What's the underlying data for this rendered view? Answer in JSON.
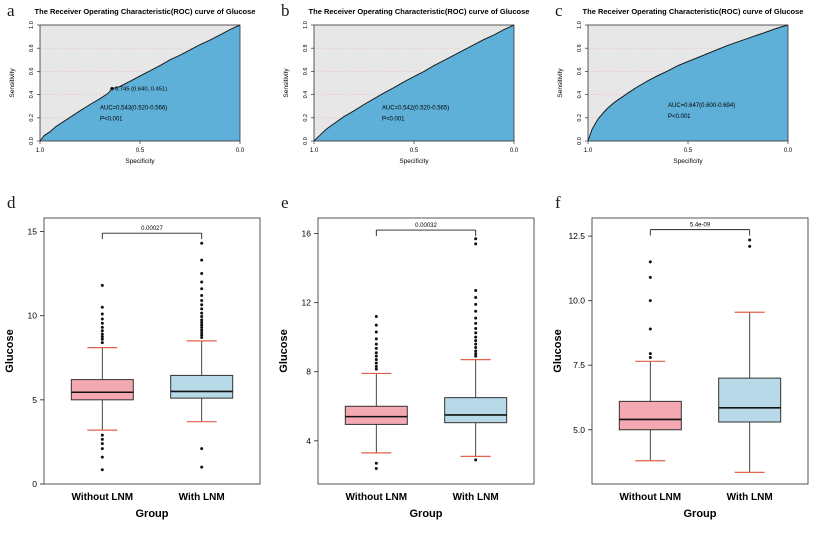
{
  "colors": {
    "roc_fill": "#5fb0d8",
    "roc_bg": "#e7e7e7",
    "grid_red": "#f0b4b4",
    "diag": "#94b594",
    "curve": "#1c1c1c",
    "whisker_cap": "#e0604c",
    "box_border": "#333333",
    "text": "#000000"
  },
  "chart_data": [
    {
      "letter": "a",
      "kind": "roc",
      "type": "line",
      "title": "The Receiver Operating Characteristic(ROC) curve of Glucose",
      "xlabel": "Specificity",
      "ylabel": "Sensitivity",
      "x_tick_labels": [
        "1.0",
        "0.5",
        "0.0"
      ],
      "y_tick_labels": [
        "0.0",
        "0.2",
        "0.4",
        "0.6",
        "0.8",
        "1.0"
      ],
      "auc_label": "AUC=0.543(0.520-0.566)",
      "p_label": "P<0.001",
      "threshold_label": "5.745 (0.640, 0.451)",
      "marker": {
        "specificity": 0.64,
        "sensitivity": 0.451
      },
      "auc_pos": [
        0.3,
        0.27
      ],
      "p_pos": [
        0.3,
        0.175
      ],
      "curve": [
        [
          0,
          0
        ],
        [
          0.02,
          0.045
        ],
        [
          0.05,
          0.08
        ],
        [
          0.08,
          0.125
        ],
        [
          0.12,
          0.17
        ],
        [
          0.16,
          0.215
        ],
        [
          0.2,
          0.26
        ],
        [
          0.25,
          0.315
        ],
        [
          0.3,
          0.365
        ],
        [
          0.34,
          0.41
        ],
        [
          0.36,
          0.451
        ],
        [
          0.4,
          0.47
        ],
        [
          0.45,
          0.515
        ],
        [
          0.5,
          0.56
        ],
        [
          0.55,
          0.605
        ],
        [
          0.6,
          0.65
        ],
        [
          0.65,
          0.7
        ],
        [
          0.7,
          0.74
        ],
        [
          0.75,
          0.785
        ],
        [
          0.8,
          0.83
        ],
        [
          0.85,
          0.87
        ],
        [
          0.9,
          0.915
        ],
        [
          0.95,
          0.96
        ],
        [
          1,
          1
        ]
      ]
    },
    {
      "letter": "b",
      "kind": "roc",
      "type": "line",
      "title": "The Receiver Operating Characteristic(ROC) curve of Glucose",
      "xlabel": "Specificity",
      "ylabel": "Sensitivity",
      "x_tick_labels": [
        "1.0",
        "0.5",
        "0.0"
      ],
      "y_tick_labels": [
        "0.0",
        "0.2",
        "0.4",
        "0.6",
        "0.8",
        "1.0"
      ],
      "auc_label": "AUC=0.542(0.520-0.565)",
      "p_label": "P<0.001",
      "auc_pos": [
        0.34,
        0.27
      ],
      "p_pos": [
        0.34,
        0.175
      ],
      "curve": [
        [
          0,
          0
        ],
        [
          0.03,
          0.05
        ],
        [
          0.06,
          0.1
        ],
        [
          0.1,
          0.15
        ],
        [
          0.15,
          0.21
        ],
        [
          0.2,
          0.26
        ],
        [
          0.25,
          0.315
        ],
        [
          0.3,
          0.365
        ],
        [
          0.35,
          0.415
        ],
        [
          0.4,
          0.46
        ],
        [
          0.45,
          0.51
        ],
        [
          0.5,
          0.555
        ],
        [
          0.55,
          0.6
        ],
        [
          0.6,
          0.65
        ],
        [
          0.65,
          0.695
        ],
        [
          0.7,
          0.74
        ],
        [
          0.75,
          0.785
        ],
        [
          0.8,
          0.83
        ],
        [
          0.85,
          0.875
        ],
        [
          0.9,
          0.915
        ],
        [
          0.95,
          0.96
        ],
        [
          1,
          1
        ]
      ]
    },
    {
      "letter": "c",
      "kind": "roc",
      "type": "line",
      "title": "The Receiver Operating Characteristic(ROC) curve of Glucose",
      "xlabel": "Specificity",
      "ylabel": "Sensitivity",
      "x_tick_labels": [
        "1.0",
        "0.5",
        "0.0"
      ],
      "y_tick_labels": [
        "0.0",
        "0.2",
        "0.4",
        "0.6",
        "0.8",
        "1.0"
      ],
      "auc_label": "AUC=0.647(0.600-0.694)",
      "p_label": "P<0.001",
      "auc_pos": [
        0.4,
        0.295
      ],
      "p_pos": [
        0.4,
        0.2
      ],
      "curve": [
        [
          0,
          0
        ],
        [
          0.02,
          0.1
        ],
        [
          0.05,
          0.19
        ],
        [
          0.08,
          0.25
        ],
        [
          0.1,
          0.285
        ],
        [
          0.13,
          0.33
        ],
        [
          0.15,
          0.355
        ],
        [
          0.18,
          0.39
        ],
        [
          0.2,
          0.415
        ],
        [
          0.25,
          0.47
        ],
        [
          0.3,
          0.52
        ],
        [
          0.35,
          0.565
        ],
        [
          0.4,
          0.605
        ],
        [
          0.45,
          0.65
        ],
        [
          0.5,
          0.685
        ],
        [
          0.55,
          0.72
        ],
        [
          0.6,
          0.755
        ],
        [
          0.65,
          0.79
        ],
        [
          0.7,
          0.825
        ],
        [
          0.75,
          0.855
        ],
        [
          0.8,
          0.885
        ],
        [
          0.85,
          0.915
        ],
        [
          0.9,
          0.945
        ],
        [
          0.95,
          0.975
        ],
        [
          1,
          1
        ]
      ]
    },
    {
      "letter": "d",
      "kind": "boxplot",
      "type": "boxplot",
      "xlabel": "Group",
      "ylabel": "Glucose",
      "ylim": [
        0,
        15.8
      ],
      "y_ticks": [
        0,
        5,
        10,
        15
      ],
      "y_tick_labels": [
        "0",
        "5",
        "10",
        "15"
      ],
      "sig": {
        "label": "0.00027",
        "y": 14.9
      },
      "groups": [
        {
          "label": "Without LNM",
          "fill": "#f3a8b2",
          "q1": 5.0,
          "median": 5.45,
          "q3": 6.2,
          "whisker_low": 3.2,
          "whisker_high": 8.1,
          "outliers": [
            8.4,
            8.6,
            8.75,
            8.9,
            9.1,
            9.3,
            9.55,
            9.8,
            10.1,
            10.5,
            11.8,
            2.9,
            2.65,
            2.4,
            2.1,
            1.6,
            0.85
          ]
        },
        {
          "label": "With LNM",
          "fill": "#b7d9e8",
          "q1": 5.1,
          "median": 5.5,
          "q3": 6.45,
          "whisker_low": 3.7,
          "whisker_high": 8.5,
          "outliers": [
            8.7,
            8.85,
            9.0,
            9.15,
            9.3,
            9.45,
            9.6,
            9.75,
            9.95,
            10.15,
            10.4,
            10.65,
            10.9,
            11.2,
            11.6,
            12.0,
            12.5,
            13.3,
            14.3,
            2.1,
            1.0
          ]
        }
      ]
    },
    {
      "letter": "e",
      "kind": "boxplot",
      "type": "boxplot",
      "xlabel": "Group",
      "ylabel": "Glucose",
      "ylim": [
        1.5,
        16.9
      ],
      "y_ticks": [
        4,
        8,
        12,
        16
      ],
      "y_tick_labels": [
        "4",
        "8",
        "12",
        "16"
      ],
      "sig": {
        "label": "0.00032",
        "y": 16.2
      },
      "groups": [
        {
          "label": "Without LNM",
          "fill": "#f3a8b2",
          "q1": 4.95,
          "median": 5.4,
          "q3": 6.0,
          "whisker_low": 3.3,
          "whisker_high": 7.9,
          "outliers": [
            8.15,
            8.3,
            8.5,
            8.7,
            8.9,
            9.1,
            9.35,
            9.6,
            9.9,
            10.3,
            10.7,
            11.2,
            2.7,
            2.4
          ]
        },
        {
          "label": "With LNM",
          "fill": "#b7d9e8",
          "q1": 5.05,
          "median": 5.5,
          "q3": 6.5,
          "whisker_low": 3.1,
          "whisker_high": 8.7,
          "outliers": [
            8.9,
            9.05,
            9.2,
            9.4,
            9.6,
            9.8,
            10.0,
            10.25,
            10.5,
            10.8,
            11.1,
            11.5,
            11.9,
            12.3,
            12.7,
            15.4,
            15.7,
            2.9
          ]
        }
      ]
    },
    {
      "letter": "f",
      "kind": "boxplot",
      "type": "boxplot",
      "xlabel": "Group",
      "ylabel": "Glucose",
      "ylim": [
        2.9,
        13.2
      ],
      "y_ticks": [
        5.0,
        7.5,
        10.0,
        12.5
      ],
      "y_tick_labels": [
        "5.0",
        "7.5",
        "10.0",
        "12.5"
      ],
      "sig": {
        "label": "5.4e-09",
        "y": 12.75
      },
      "groups": [
        {
          "label": "Without LNM",
          "fill": "#f3a8b2",
          "q1": 5.0,
          "median": 5.4,
          "q3": 6.1,
          "whisker_low": 3.8,
          "whisker_high": 7.65,
          "outliers": [
            7.8,
            7.95,
            8.9,
            10.0,
            10.9,
            11.5
          ]
        },
        {
          "label": "With LNM",
          "fill": "#b7d9e8",
          "q1": 5.3,
          "median": 5.85,
          "q3": 7.0,
          "whisker_low": 3.35,
          "whisker_high": 9.55,
          "outliers": [
            12.1,
            12.35
          ]
        }
      ]
    }
  ]
}
